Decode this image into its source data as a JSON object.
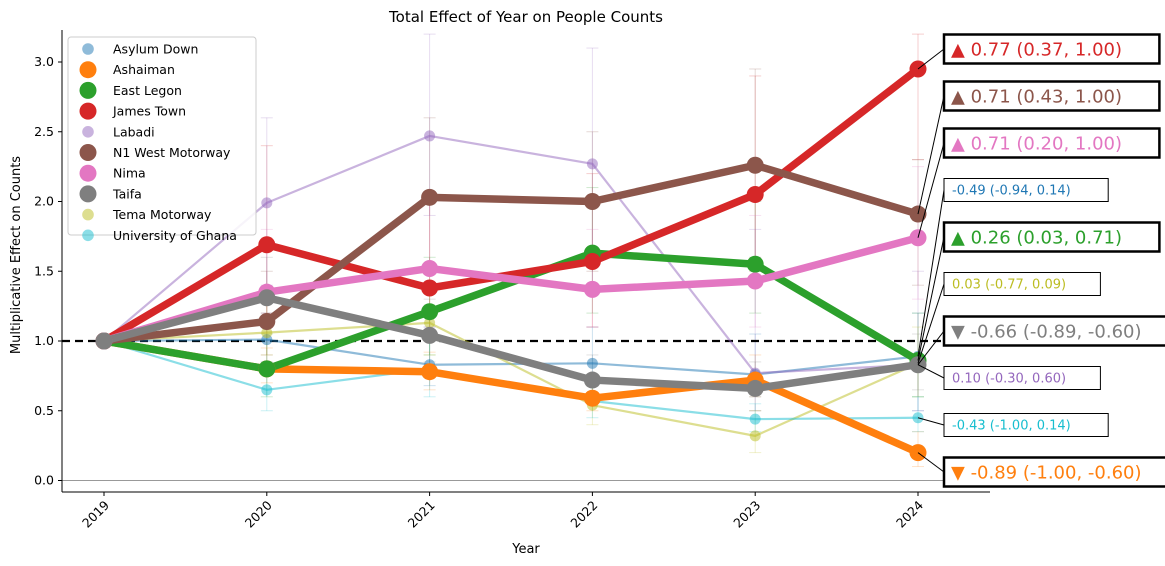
{
  "chart_data": {
    "type": "line",
    "title": "Total Effect of Year on People Counts",
    "xlabel": "Year",
    "ylabel": "Multiplicative Effect on Counts",
    "x": [
      2019,
      2020,
      2021,
      2022,
      2023,
      2024
    ],
    "xticks": [
      "2019",
      "2020",
      "2021",
      "2022",
      "2023",
      "2024"
    ],
    "yticks": [
      "0.0",
      "0.5",
      "1.0",
      "1.5",
      "2.0",
      "2.5",
      "3.0"
    ],
    "ylim": [
      -0.08,
      3.23
    ],
    "reference_line": 1.0,
    "zero_line": 0.0,
    "grid": false,
    "legend_position": "top-left",
    "series": [
      {
        "name": "Asylum Down",
        "color": "#1f77b4",
        "emphasis": false,
        "values": [
          1.0,
          1.01,
          0.83,
          0.84,
          0.76,
          0.89
        ],
        "err_low": [
          1.0,
          0.85,
          0.68,
          0.62,
          0.6,
          0.5
        ],
        "err_high": [
          1.0,
          1.2,
          1.1,
          1.1,
          1.05,
          1.2
        ],
        "annotation": "-0.49 (-0.94, 0.14)"
      },
      {
        "name": "Ashaiman",
        "color": "#ff7f0e",
        "emphasis": true,
        "values": [
          1.0,
          0.8,
          0.78,
          0.59,
          0.72,
          0.2
        ],
        "err_low": [
          1.0,
          0.7,
          0.65,
          0.5,
          0.6,
          0.1
        ],
        "err_high": [
          1.0,
          0.95,
          0.92,
          0.75,
          0.9,
          0.35
        ],
        "annotation": "▼ -0.89 (-1.00, -0.60)"
      },
      {
        "name": "East Legon",
        "color": "#2ca02c",
        "emphasis": true,
        "values": [
          1.0,
          0.8,
          1.21,
          1.63,
          1.55,
          0.86
        ],
        "err_low": [
          1.0,
          0.6,
          0.9,
          1.2,
          1.2,
          0.6
        ],
        "err_high": [
          1.0,
          1.05,
          1.6,
          2.1,
          2.0,
          1.2
        ],
        "annotation": "▲ 0.26 (0.03, 0.71)"
      },
      {
        "name": "James Town",
        "color": "#d62728",
        "emphasis": true,
        "values": [
          1.0,
          1.69,
          1.38,
          1.57,
          2.05,
          2.95
        ],
        "err_low": [
          1.0,
          1.2,
          1.0,
          1.1,
          1.5,
          2.3
        ],
        "err_high": [
          1.0,
          2.4,
          2.0,
          2.2,
          2.9,
          3.2
        ],
        "annotation": "▲ 0.77 (0.37, 1.00)"
      },
      {
        "name": "Labadi",
        "color": "#9467bd",
        "emphasis": false,
        "values": [
          1.0,
          1.99,
          2.47,
          2.27,
          0.77,
          0.83
        ],
        "err_low": [
          1.0,
          1.4,
          1.9,
          1.4,
          0.5,
          0.5
        ],
        "err_high": [
          1.0,
          2.6,
          3.2,
          3.1,
          1.8,
          1.5
        ],
        "annotation": "0.10 (-0.30, 0.60)"
      },
      {
        "name": "N1 West Motorway",
        "color": "#8c564b",
        "emphasis": true,
        "values": [
          1.0,
          1.14,
          2.03,
          2.0,
          2.26,
          1.91
        ],
        "err_low": [
          1.0,
          0.9,
          1.5,
          1.5,
          1.6,
          1.4
        ],
        "err_high": [
          1.0,
          1.5,
          2.6,
          2.5,
          2.95,
          2.3
        ],
        "annotation": "▲ 0.71 (0.43, 1.00)"
      },
      {
        "name": "Nima",
        "color": "#e377c2",
        "emphasis": true,
        "values": [
          1.0,
          1.35,
          1.52,
          1.37,
          1.43,
          1.74
        ],
        "err_low": [
          1.0,
          1.0,
          1.1,
          1.1,
          1.1,
          1.3
        ],
        "err_high": [
          1.0,
          1.8,
          2.0,
          1.8,
          1.9,
          2.25
        ],
        "annotation": "▲ 0.71 (0.20, 1.00)"
      },
      {
        "name": "Taifa",
        "color": "#7f7f7f",
        "emphasis": true,
        "values": [
          1.0,
          1.31,
          1.04,
          0.72,
          0.66,
          0.83
        ],
        "err_low": [
          1.0,
          1.1,
          0.85,
          0.6,
          0.5,
          0.65
        ],
        "err_high": [
          1.0,
          1.6,
          1.3,
          0.9,
          0.85,
          1.05
        ],
        "annotation": "▼ -0.66 (-0.89, -0.60)"
      },
      {
        "name": "Tema Motorway",
        "color": "#bcbd22",
        "emphasis": false,
        "values": [
          1.0,
          1.06,
          1.13,
          0.54,
          0.32,
          0.84
        ],
        "err_low": [
          1.0,
          0.9,
          0.9,
          0.4,
          0.2,
          0.6
        ],
        "err_high": [
          1.0,
          1.3,
          1.4,
          0.75,
          0.5,
          1.1
        ],
        "annotation": "0.03 (-0.77, 0.09)"
      },
      {
        "name": "University of Ghana",
        "color": "#17becf",
        "emphasis": false,
        "values": [
          1.0,
          0.65,
          0.8,
          0.57,
          0.44,
          0.45
        ],
        "err_low": [
          1.0,
          0.5,
          0.6,
          0.45,
          0.35,
          0.35
        ],
        "err_high": [
          1.0,
          0.8,
          1.0,
          0.7,
          0.55,
          0.6
        ],
        "annotation": "-0.43 (-1.00, 0.14)"
      }
    ]
  }
}
